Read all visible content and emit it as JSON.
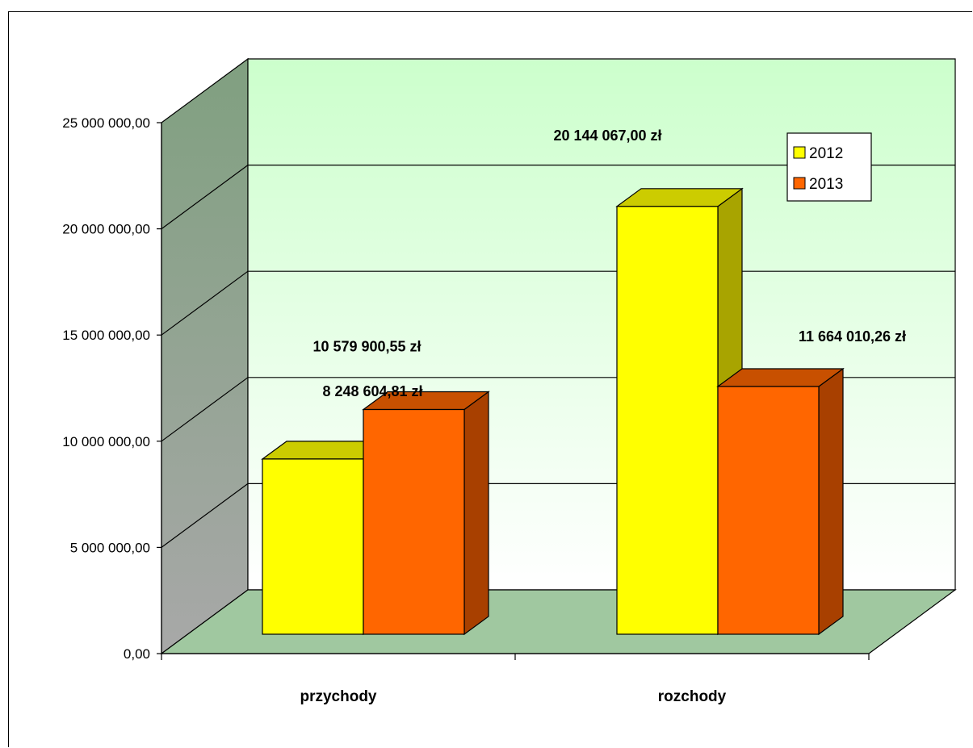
{
  "chart_data": {
    "type": "bar",
    "categories": [
      "przychody",
      "rozchody"
    ],
    "series": [
      {
        "name": "2012",
        "values": [
          8248604.81,
          20144067.0
        ],
        "labels": [
          "8 248 604,81 zł",
          "20 144 067,00 zł"
        ]
      },
      {
        "name": "2013",
        "values": [
          10579900.55,
          11664010.26
        ],
        "labels": [
          "10 579 900,55 zł",
          "11 664 010,26 zł"
        ]
      }
    ],
    "ylim": [
      0,
      25000000
    ],
    "yticks": [
      0,
      5000000,
      10000000,
      15000000,
      20000000,
      25000000
    ],
    "ytick_labels": [
      "0,00",
      "5 000 000,00",
      "10 000 000,00",
      "15 000 000,00",
      "20 000 000,00",
      "25 000 000,00"
    ],
    "grid": true,
    "legend_position": "top-right",
    "colors": {
      "series_2012": "#ffff00",
      "series_2012_top": "#cccc00",
      "series_2012_side": "#a8a400",
      "series_2013": "#ff6600",
      "series_2013_top": "#c85000",
      "series_2013_side": "#a84000",
      "back_wall_top": "#ccffcc",
      "back_wall_bottom": "#ffffff",
      "side_wall_top": "#80a080",
      "side_wall_bottom": "#a8a8a8",
      "floor": "#a0c8a0"
    }
  }
}
